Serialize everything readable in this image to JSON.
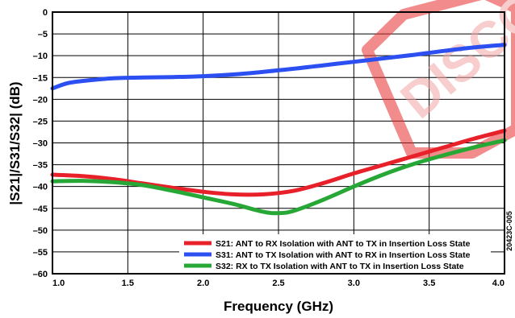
{
  "watermark": {
    "text": "DISCO",
    "color": "#e8302f"
  },
  "figure_id": "20423C-005",
  "chart_data": {
    "type": "line",
    "xlabel": "Frequency (GHz)",
    "ylabel": "|S21|/S31/S32| (dB)",
    "xlim": [
      1.0,
      4.0
    ],
    "ylim": [
      -60,
      0
    ],
    "x_ticks": [
      "1.0",
      "1.5",
      "2.0",
      "2.5",
      "3.0",
      "3.5",
      "4.0"
    ],
    "y_ticks": [
      "0",
      "–5",
      "–10",
      "–15",
      "–20",
      "–25",
      "–30",
      "–35",
      "–40",
      "–45",
      "–50",
      "–55",
      "–60"
    ],
    "grid": true,
    "legend_position": "bottom-right",
    "series": [
      {
        "name": "S21: ANT to RX Isolation with ANT to TX in Insertion Loss State",
        "color": "#e8202a",
        "x": [
          1.0,
          1.2,
          1.4,
          1.6,
          1.8,
          2.0,
          2.2,
          2.4,
          2.6,
          2.8,
          3.0,
          3.2,
          3.4,
          3.6,
          3.8,
          4.0
        ],
        "y": [
          -37.3,
          -37.6,
          -38.3,
          -39.3,
          -40.3,
          -41.2,
          -41.8,
          -41.8,
          -41.0,
          -39.2,
          -37.0,
          -35.0,
          -33.0,
          -31.0,
          -29.0,
          -27.2
        ]
      },
      {
        "name": "S31: ANT to TX Isolation with ANT to RX in Insertion Loss State",
        "color": "#2b4ff0",
        "x": [
          1.0,
          1.1,
          1.2,
          1.4,
          1.6,
          1.8,
          2.0,
          2.2,
          2.4,
          2.6,
          2.8,
          3.0,
          3.2,
          3.4,
          3.6,
          3.8,
          4.0
        ],
        "y": [
          -17.5,
          -16.3,
          -15.8,
          -15.2,
          -15.0,
          -14.9,
          -14.7,
          -14.3,
          -13.7,
          -13.0,
          -12.2,
          -11.4,
          -10.6,
          -9.8,
          -8.9,
          -8.1,
          -7.5
        ]
      },
      {
        "name": "S32: RX to TX Isolation with ANT to TX in Insertion Loss State",
        "color": "#27a836",
        "x": [
          1.0,
          1.2,
          1.4,
          1.6,
          1.8,
          2.0,
          2.2,
          2.4,
          2.5,
          2.6,
          2.8,
          3.0,
          3.2,
          3.4,
          3.6,
          3.8,
          4.0
        ],
        "y": [
          -38.8,
          -38.7,
          -39.0,
          -39.7,
          -41.0,
          -42.5,
          -44.0,
          -45.8,
          -46.1,
          -45.6,
          -43.0,
          -40.0,
          -37.2,
          -34.8,
          -32.8,
          -31.0,
          -29.4
        ]
      }
    ]
  }
}
